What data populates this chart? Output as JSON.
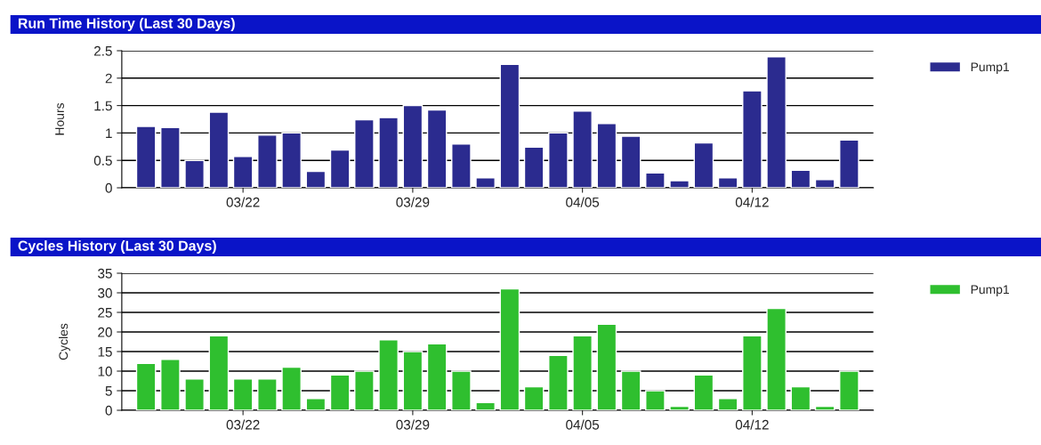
{
  "chart_data": [
    {
      "type": "bar",
      "title": "Run Time History (Last 30 Days)",
      "ylabel": "Hours",
      "categories": [
        null,
        null,
        null,
        null,
        "03/22",
        null,
        null,
        null,
        null,
        null,
        null,
        "03/29",
        null,
        null,
        null,
        null,
        null,
        null,
        "04/05",
        null,
        null,
        null,
        null,
        null,
        null,
        "04/12",
        null,
        null,
        null,
        null
      ],
      "series": [
        {
          "name": "Pump1",
          "color": "#2b2b8f",
          "values": [
            1.12,
            1.1,
            0.5,
            1.38,
            0.57,
            0.96,
            1.0,
            0.3,
            0.69,
            1.24,
            1.28,
            1.5,
            1.42,
            0.8,
            0.18,
            2.25,
            0.74,
            1.0,
            1.4,
            1.17,
            0.94,
            0.27,
            0.13,
            0.82,
            0.18,
            1.77,
            2.39,
            0.32,
            0.15,
            0.87
          ]
        }
      ],
      "ylim": [
        0,
        2.5
      ],
      "yticks": [
        0,
        0.5,
        1,
        1.5,
        2,
        2.5
      ],
      "grid": "y",
      "legend": "top right"
    },
    {
      "type": "bar",
      "title": "Cycles History (Last 30 Days)",
      "ylabel": "Cycles",
      "categories": [
        null,
        null,
        null,
        null,
        "03/22",
        null,
        null,
        null,
        null,
        null,
        null,
        "03/29",
        null,
        null,
        null,
        null,
        null,
        null,
        "04/05",
        null,
        null,
        null,
        null,
        null,
        null,
        "04/12",
        null,
        null,
        null,
        null
      ],
      "series": [
        {
          "name": "Pump1",
          "color": "#2fbf2f",
          "values": [
            12,
            13,
            8,
            19,
            8,
            8,
            11,
            3,
            9,
            10,
            18,
            15,
            17,
            10,
            2,
            31,
            6,
            14,
            19,
            22,
            10,
            5,
            1,
            9,
            3,
            19,
            26,
            6,
            1,
            10
          ]
        }
      ],
      "ylim": [
        0,
        35
      ],
      "yticks": [
        0,
        5,
        10,
        15,
        20,
        25,
        30,
        35
      ],
      "grid": "y",
      "legend": "top right"
    }
  ]
}
